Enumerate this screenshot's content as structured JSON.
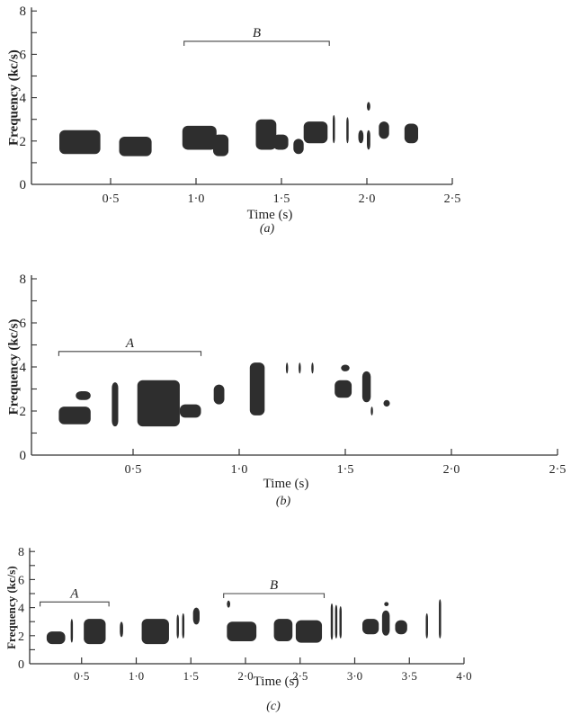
{
  "chart_data": [
    {
      "type": "spectrogram",
      "panel_label": "(a)",
      "xlabel": "Time (s)",
      "ylabel": "Frequency (kc/s)",
      "xlim": [
        0,
        2.5
      ],
      "ylim": [
        0,
        8
      ],
      "xticks": [
        "0·5",
        "1·0",
        "1·5",
        "2·0",
        "2·5"
      ],
      "xtick_values": [
        0.5,
        1.0,
        1.5,
        2.0,
        2.5
      ],
      "yticks": [
        "0",
        "2",
        "4",
        "6",
        "8"
      ],
      "ytick_values": [
        0,
        2,
        4,
        6,
        8
      ],
      "brackets": [
        {
          "label": "B",
          "start": 0.93,
          "end": 1.78,
          "freq": 6.6
        }
      ],
      "syllables": [
        [
          0.2,
          0.44,
          1.4,
          2.5
        ],
        [
          0.55,
          0.74,
          1.3,
          2.2
        ],
        [
          0.92,
          1.12,
          1.6,
          2.7
        ],
        [
          1.1,
          1.19,
          1.3,
          2.3
        ],
        [
          1.35,
          1.47,
          1.6,
          3.0
        ],
        [
          1.45,
          1.54,
          1.6,
          2.3
        ],
        [
          1.57,
          1.63,
          1.4,
          2.1
        ],
        [
          1.63,
          1.77,
          1.9,
          2.9
        ],
        [
          1.8,
          1.81,
          1.9,
          3.2
        ],
        [
          1.88,
          1.89,
          1.9,
          3.1
        ],
        [
          1.95,
          1.98,
          1.9,
          2.5
        ],
        [
          2.0,
          2.02,
          1.6,
          2.5
        ],
        [
          2.0,
          2.02,
          3.4,
          3.8
        ],
        [
          2.07,
          2.13,
          2.1,
          2.9
        ],
        [
          2.22,
          2.3,
          1.9,
          2.8
        ]
      ]
    },
    {
      "type": "spectrogram",
      "panel_label": "(b)",
      "xlabel": "Time (s)",
      "ylabel": "Frequency (kc/s)",
      "xlim": [
        0,
        2.5
      ],
      "ylim": [
        0,
        8
      ],
      "xticks": [
        "0·5",
        "1·0",
        "1·5",
        "2·0",
        "2·5"
      ],
      "xtick_values": [
        0.5,
        1.0,
        1.5,
        2.0,
        2.5
      ],
      "yticks": [
        "0",
        "2",
        "4",
        "6",
        "8"
      ],
      "ytick_values": [
        0,
        2,
        4,
        6,
        8
      ],
      "brackets": [
        {
          "label": "A",
          "start": 0.15,
          "end": 0.82,
          "freq": 4.7
        }
      ],
      "syllables": [
        [
          0.15,
          0.3,
          1.4,
          2.2
        ],
        [
          0.23,
          0.3,
          2.5,
          2.9
        ],
        [
          0.4,
          0.43,
          1.3,
          3.3
        ],
        [
          0.52,
          0.72,
          1.3,
          3.4
        ],
        [
          0.72,
          0.82,
          1.7,
          2.3
        ],
        [
          0.88,
          0.93,
          2.3,
          3.2
        ],
        [
          1.05,
          1.12,
          1.8,
          4.2
        ],
        [
          1.22,
          1.23,
          3.7,
          4.2
        ],
        [
          1.28,
          1.29,
          3.7,
          4.2
        ],
        [
          1.34,
          1.35,
          3.7,
          4.2
        ],
        [
          1.45,
          1.53,
          2.6,
          3.4
        ],
        [
          1.48,
          1.52,
          3.8,
          4.1
        ],
        [
          1.58,
          1.62,
          2.4,
          3.8
        ],
        [
          1.62,
          1.63,
          1.8,
          2.2
        ],
        [
          1.68,
          1.71,
          2.2,
          2.5
        ]
      ]
    },
    {
      "type": "spectrogram",
      "panel_label": "(c)",
      "xlabel": "Time (s)",
      "ylabel": "Frequency (kc/s)",
      "xlim": [
        0,
        4.0
      ],
      "ylim": [
        0,
        8
      ],
      "xticks": [
        "0·5",
        "1·0",
        "1·5",
        "2·0",
        "2·5",
        "3·0",
        "3·5",
        "4·0"
      ],
      "xtick_values": [
        0.5,
        1.0,
        1.5,
        2.0,
        2.5,
        3.0,
        3.5,
        4.0
      ],
      "yticks": [
        "0",
        "2",
        "4",
        "6",
        "8"
      ],
      "ytick_values": [
        0,
        2,
        4,
        6,
        8
      ],
      "brackets": [
        {
          "label": "A",
          "start": 0.12,
          "end": 0.75,
          "freq": 4.4
        },
        {
          "label": "B",
          "start": 1.8,
          "end": 2.72,
          "freq": 5.0
        }
      ],
      "syllables": [
        [
          0.18,
          0.35,
          1.4,
          2.3
        ],
        [
          0.4,
          0.42,
          1.5,
          3.2
        ],
        [
          0.52,
          0.72,
          1.4,
          3.2
        ],
        [
          0.85,
          0.88,
          1.9,
          3.0
        ],
        [
          1.05,
          1.3,
          1.4,
          3.2
        ],
        [
          1.37,
          1.39,
          1.8,
          3.5
        ],
        [
          1.42,
          1.44,
          1.8,
          3.6
        ],
        [
          1.52,
          1.58,
          2.8,
          4.0
        ],
        [
          1.83,
          2.1,
          1.6,
          3.0
        ],
        [
          1.83,
          1.86,
          4.0,
          4.5
        ],
        [
          2.26,
          2.43,
          1.6,
          3.2
        ],
        [
          2.46,
          2.7,
          1.5,
          3.1
        ],
        [
          2.78,
          2.8,
          1.7,
          4.3
        ],
        [
          2.82,
          2.84,
          1.8,
          4.2
        ],
        [
          2.86,
          2.88,
          1.8,
          4.1
        ],
        [
          3.07,
          3.22,
          2.1,
          3.2
        ],
        [
          3.25,
          3.32,
          2.0,
          3.8
        ],
        [
          3.27,
          3.31,
          4.1,
          4.4
        ],
        [
          3.37,
          3.48,
          2.1,
          3.1
        ],
        [
          3.65,
          3.66,
          1.8,
          3.6
        ],
        [
          3.77,
          3.78,
          1.8,
          4.6
        ]
      ]
    }
  ]
}
